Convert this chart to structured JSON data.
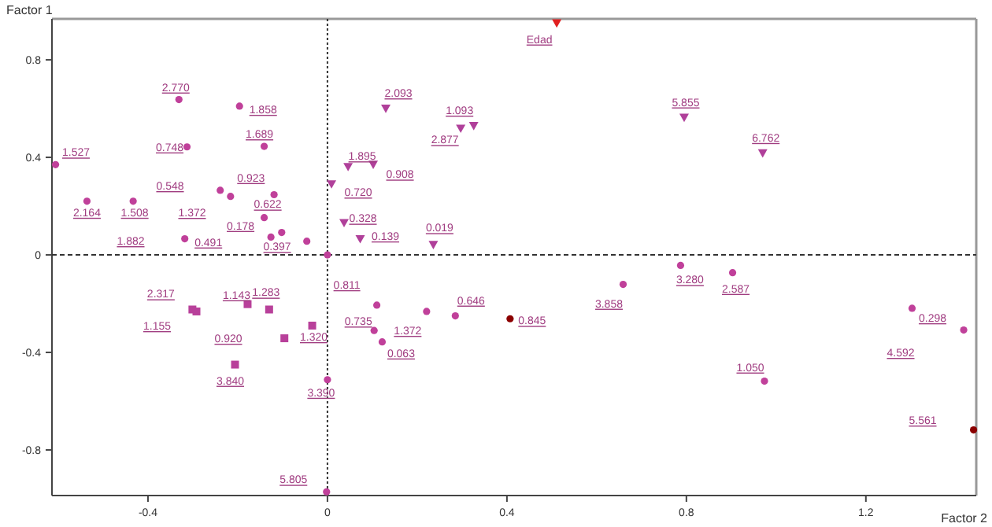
{
  "chart_data": {
    "type": "scatter",
    "xlabel": "Factor 2",
    "ylabel": "Factor 1",
    "xlim": [
      -0.614,
      1.446
    ],
    "ylim": [
      -0.987,
      0.968
    ],
    "xticks": [
      -0.4,
      0,
      0.4,
      0.8,
      1.2
    ],
    "yticks": [
      -0.8,
      -0.4,
      0,
      0.4,
      0.8
    ],
    "grid": false,
    "ref_lines": [
      {
        "axis": "x",
        "value": 0,
        "line_style": "dotted",
        "color": "#333333"
      },
      {
        "axis": "y",
        "value": 0,
        "line_style": "dashed",
        "color": "#333333"
      }
    ],
    "series": [
      {
        "color": "#c0409a",
        "marker": "circle",
        "x": [
          -0.606,
          -0.536,
          -0.433,
          -0.331,
          -0.318,
          -0.239,
          -0.216,
          -0.196,
          -0.141,
          -0.119,
          -0.141,
          -0.102,
          -0.126,
          -0.046,
          0.0,
          -0.313,
          0.0,
          -0.002,
          0.11,
          0.104,
          0.122,
          0.221,
          0.285,
          0.659,
          0.787,
          0.903,
          1.303,
          1.418,
          0.974
        ],
        "values": [
          0.37,
          0.22,
          0.22,
          0.637,
          0.066,
          0.265,
          0.24,
          0.61,
          0.445,
          0.247,
          0.153,
          0.092,
          0.073,
          0.056,
          0.0,
          0.443,
          -0.512,
          -0.972,
          -0.206,
          -0.31,
          -0.357,
          -0.232,
          -0.25,
          -0.121,
          -0.043,
          -0.073,
          -0.219,
          -0.308,
          -0.518
        ]
      },
      {
        "color": "#b0409a",
        "marker": "triangle",
        "x": [
          0.009,
          0.13,
          0.297,
          0.326,
          0.046,
          0.102,
          0.037,
          0.073,
          0.236,
          0.795,
          0.97
        ],
        "values": [
          0.29,
          0.6,
          0.518,
          0.529,
          0.361,
          0.37,
          0.131,
          0.065,
          0.041,
          0.563,
          0.417
        ]
      },
      {
        "color": "#e02020",
        "marker": "triangle",
        "x": [
          0.511
        ],
        "values": [
          0.95
        ]
      },
      {
        "color": "#b8409a",
        "marker": "square",
        "x": [
          -0.301,
          -0.292,
          -0.178,
          -0.13,
          -0.096,
          -0.034,
          -0.206
        ],
        "values": [
          -0.224,
          -0.232,
          -0.202,
          -0.224,
          -0.342,
          -0.29,
          -0.45
        ]
      },
      {
        "color": "#8b0000",
        "marker": "circle",
        "x": [
          0.407,
          1.44
        ],
        "values": [
          -0.262,
          -0.718
        ]
      }
    ],
    "annotations": [
      {
        "text": "2.770",
        "x": -0.331,
        "y": 0.637
      },
      {
        "text": "1.858",
        "x": -0.196,
        "y": 0.61
      },
      {
        "text": "1.689",
        "x": -0.141,
        "y": 0.445
      },
      {
        "text": "1.527",
        "x": -0.606,
        "y": 0.37
      },
      {
        "text": "0.748",
        "x": -0.313,
        "y": 0.443
      },
      "0.548",
      {
        "text": "0.923",
        "x": -0.216,
        "y": 0.24
      },
      {
        "text": "0.622",
        "x": -0.119,
        "y": 0.247
      },
      {
        "text": "2.164",
        "x": -0.536,
        "y": 0.22
      },
      {
        "text": "1.508",
        "x": -0.433,
        "y": 0.22
      },
      "1.372",
      {
        "text": "0.178",
        "x": -0.141,
        "y": 0.153
      },
      "1.882",
      {
        "text": "0.491",
        "x": -0.318,
        "y": 0.066
      },
      {
        "text": "0.397",
        "x": -0.126,
        "y": 0.073
      },
      {
        "text": "Edad",
        "x": 0.511,
        "y": 0.95
      },
      {
        "text": "2.093",
        "x": 0.13,
        "y": 0.6
      },
      {
        "text": "1.093",
        "x": 0.326,
        "y": 0.529
      },
      {
        "text": "2.877",
        "x": 0.297,
        "y": 0.518
      },
      {
        "text": "1.895",
        "x": 0.046,
        "y": 0.361
      },
      {
        "text": "0.908",
        "x": 0.102,
        "y": 0.37
      },
      {
        "text": "0.720",
        "x": 0.009,
        "y": 0.29
      },
      {
        "text": "0.328",
        "x": 0.037,
        "y": 0.131
      },
      {
        "text": "0.139",
        "x": 0.073,
        "y": 0.065
      },
      {
        "text": "0.019",
        "x": 0.236,
        "y": 0.041
      },
      {
        "text": "5.855",
        "x": 0.795,
        "y": 0.563
      },
      {
        "text": "6.762",
        "x": 0.97,
        "y": 0.417
      },
      {
        "text": "2.317",
        "x": -0.301,
        "y": -0.224
      },
      {
        "text": "1.143",
        "x": -0.178,
        "y": -0.202
      },
      {
        "text": "1.283",
        "x": -0.13,
        "y": -0.224
      },
      {
        "text": "1.155",
        "x": -0.292,
        "y": -0.232
      },
      "0.920",
      {
        "text": "1.320",
        "x": -0.034,
        "y": -0.29
      },
      {
        "text": "3.840",
        "x": -0.206,
        "y": -0.45
      },
      {
        "text": "3.390",
        "x": 0.0,
        "y": -0.512
      },
      {
        "text": "5.805",
        "x": -0.002,
        "y": -0.972
      },
      {
        "text": "0.811",
        "x": 0.11,
        "y": -0.206
      },
      {
        "text": "0.735",
        "x": 0.104,
        "y": -0.31
      },
      {
        "text": "1.372",
        "x": 0.221,
        "y": -0.232
      },
      {
        "text": "0.063",
        "x": 0.122,
        "y": -0.357
      },
      {
        "text": "0.646",
        "x": 0.285,
        "y": -0.25
      },
      {
        "text": "0.845",
        "x": 0.407,
        "y": -0.262
      },
      {
        "text": "3.858",
        "x": 0.659,
        "y": -0.121
      },
      {
        "text": "3.280",
        "x": 0.787,
        "y": -0.043
      },
      {
        "text": "2.587",
        "x": 0.903,
        "y": -0.073
      },
      {
        "text": "0.298",
        "x": 1.303,
        "y": -0.219
      },
      "4.592",
      {
        "text": "1.050",
        "x": 0.974,
        "y": -0.518
      },
      "5.561"
    ]
  }
}
